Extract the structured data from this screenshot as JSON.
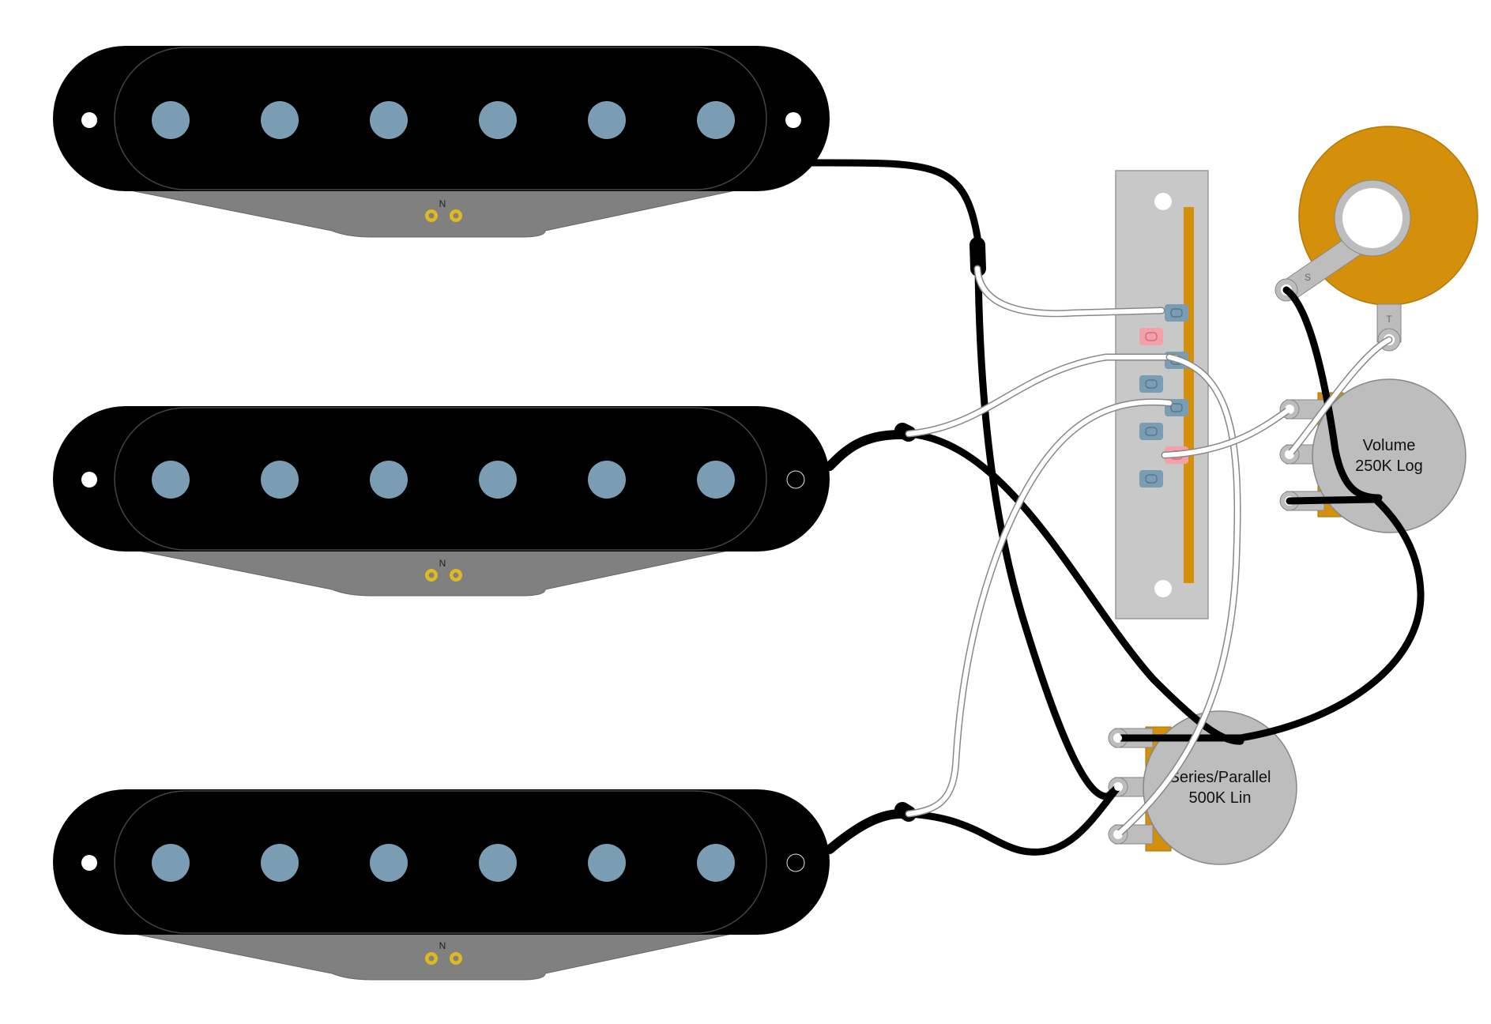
{
  "pickups": [
    {
      "id": "neck",
      "polarity_label": "N"
    },
    {
      "id": "middle",
      "polarity_label": "N"
    },
    {
      "id": "bridge",
      "polarity_label": "N"
    }
  ],
  "volume_pot": {
    "line1": "Volume",
    "line2": "250K Log"
  },
  "series_parallel_pot": {
    "line1": "Series/Parallel",
    "line2": "500K Lin"
  },
  "jack": {
    "sleeve_label": "S",
    "tip_label": "T"
  },
  "colors": {
    "pickup_cover": "#000000",
    "pole_piece": "#7a9db3",
    "baseplate": "#808080",
    "eyelet": "#e0b820",
    "switch_body": "#c8c8c8",
    "switch_contact_bar": "#d4900a",
    "switch_lug_blue": "#7a9db3",
    "switch_lug_red": "#f4a0a6",
    "pot_body": "#bdbdbd",
    "pot_tab": "#d4900a",
    "jack_washer": "#d4900a",
    "wire_hot": "#ffffff",
    "wire_ground": "#000000"
  }
}
